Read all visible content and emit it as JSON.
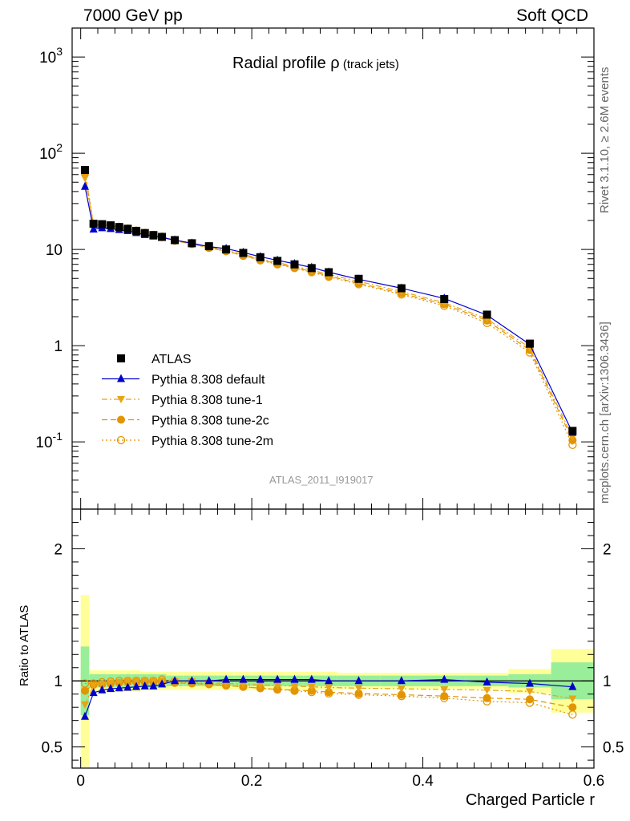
{
  "header": {
    "left": "7000 GeV pp",
    "right": "Soft QCD"
  },
  "side_text": {
    "rivet": "Rivet 3.1.10, ≥ 2.6M events",
    "source": "mcplots.cern.ch [arXiv:1306.3436]"
  },
  "analysis_id": "ATLAS_2011_I919017",
  "chart_data": [
    {
      "type": "scatter",
      "title": "Radial profile ρ (track jets)",
      "title_main": "Radial profile",
      "title_symbol": "ρ",
      "title_suffix": "(track jets)",
      "yscale": "log",
      "ylim": [
        0.02,
        2000
      ],
      "xlim": [
        -0.01,
        0.6
      ],
      "y_ticklabels": [
        "10^-1",
        "1",
        "10",
        "10^2",
        "10^3"
      ],
      "grid": false,
      "legend_position": "bottom-left",
      "x": [
        0.005,
        0.015,
        0.025,
        0.035,
        0.045,
        0.055,
        0.065,
        0.075,
        0.085,
        0.095,
        0.11,
        0.13,
        0.15,
        0.17,
        0.19,
        0.21,
        0.23,
        0.25,
        0.27,
        0.29,
        0.325,
        0.375,
        0.425,
        0.475,
        0.525,
        0.575
      ],
      "series": [
        {
          "name": "ATLAS",
          "color": "#000000",
          "marker": "square",
          "line": "none",
          "values": [
            67,
            18.5,
            18.3,
            17.8,
            17.1,
            16.4,
            15.6,
            14.8,
            14.1,
            13.5,
            12.5,
            11.6,
            10.8,
            10.0,
            9.2,
            8.3,
            7.6,
            7.0,
            6.4,
            5.8,
            4.95,
            3.95,
            3.05,
            2.1,
            1.05,
            0.13
          ]
        },
        {
          "name": "Pythia 8.308 default",
          "color": "#0000cc",
          "marker": "triangle-up",
          "line": "solid",
          "values": [
            45,
            16.2,
            16.7,
            16.4,
            16.0,
            15.6,
            14.9,
            14.2,
            13.7,
            13.3,
            12.5,
            11.6,
            10.7,
            10.2,
            9.3,
            8.4,
            7.7,
            7.1,
            6.5,
            5.8,
            4.9,
            3.95,
            3.1,
            2.08,
            1.03,
            0.125
          ]
        },
        {
          "name": "Pythia 8.308 tune-1",
          "color": "#e8a317",
          "marker": "triangle-down",
          "line": "dashdot",
          "values": [
            55,
            17.9,
            18.0,
            17.6,
            17.0,
            16.4,
            15.6,
            14.8,
            14.1,
            13.5,
            12.5,
            11.6,
            10.6,
            9.8,
            8.9,
            8.0,
            7.3,
            6.7,
            6.1,
            5.5,
            4.65,
            3.65,
            2.8,
            1.9,
            0.95,
            0.112
          ]
        },
        {
          "name": "Pythia 8.308 tune-2c",
          "color": "#e39500",
          "marker": "circle",
          "line": "dashed",
          "values": [
            62,
            18.0,
            18.1,
            17.7,
            17.0,
            16.4,
            15.6,
            14.8,
            14.0,
            13.4,
            12.3,
            11.4,
            10.4,
            9.6,
            8.7,
            7.8,
            7.1,
            6.5,
            5.9,
            5.3,
            4.45,
            3.5,
            2.7,
            1.82,
            0.9,
            0.104
          ]
        },
        {
          "name": "Pythia 8.308 tune-2m",
          "color": "#e39500",
          "marker": "circle-open",
          "line": "dotted",
          "values": [
            66,
            18.1,
            18.2,
            17.8,
            17.2,
            16.5,
            15.7,
            14.9,
            14.2,
            13.6,
            12.4,
            11.4,
            10.4,
            9.6,
            8.6,
            7.7,
            7.0,
            6.4,
            5.8,
            5.2,
            4.35,
            3.4,
            2.6,
            1.72,
            0.85,
            0.093
          ]
        }
      ]
    },
    {
      "type": "scatter",
      "ylabel": "Ratio to ATLAS",
      "xlabel": "Charged Particle r",
      "ylim": [
        0.34,
        2.3
      ],
      "xlim": [
        -0.01,
        0.6
      ],
      "y_ticklabels": [
        "0.5",
        "1",
        "2"
      ],
      "x_ticklabels": [
        "0",
        "0.2",
        "0.4",
        "0.6"
      ],
      "reference_line": 1,
      "band_colors": {
        "inner": "#99ee99",
        "outer": "#ffff99"
      },
      "bins": [
        [
          0,
          0.01
        ],
        [
          0.01,
          0.02
        ],
        [
          0.02,
          0.03
        ],
        [
          0.03,
          0.04
        ],
        [
          0.04,
          0.05
        ],
        [
          0.05,
          0.06
        ],
        [
          0.06,
          0.07
        ],
        [
          0.07,
          0.08
        ],
        [
          0.08,
          0.09
        ],
        [
          0.09,
          0.1
        ],
        [
          0.1,
          0.12
        ],
        [
          0.12,
          0.14
        ],
        [
          0.14,
          0.16
        ],
        [
          0.16,
          0.18
        ],
        [
          0.18,
          0.2
        ],
        [
          0.2,
          0.22
        ],
        [
          0.22,
          0.24
        ],
        [
          0.24,
          0.26
        ],
        [
          0.26,
          0.28
        ],
        [
          0.28,
          0.3
        ],
        [
          0.3,
          0.35
        ],
        [
          0.35,
          0.4
        ],
        [
          0.4,
          0.45
        ],
        [
          0.45,
          0.5
        ],
        [
          0.5,
          0.55
        ],
        [
          0.55,
          0.6
        ]
      ],
      "band_inner": [
        0.26,
        0.05,
        0.05,
        0.05,
        0.05,
        0.05,
        0.05,
        0.05,
        0.05,
        0.05,
        0.04,
        0.04,
        0.04,
        0.04,
        0.04,
        0.04,
        0.04,
        0.04,
        0.04,
        0.04,
        0.04,
        0.04,
        0.04,
        0.04,
        0.05,
        0.14
      ],
      "band_outer": [
        0.65,
        0.08,
        0.08,
        0.08,
        0.08,
        0.08,
        0.08,
        0.07,
        0.07,
        0.07,
        0.07,
        0.07,
        0.07,
        0.07,
        0.07,
        0.07,
        0.07,
        0.07,
        0.07,
        0.07,
        0.06,
        0.06,
        0.06,
        0.06,
        0.09,
        0.24
      ],
      "x": [
        0.005,
        0.015,
        0.025,
        0.035,
        0.045,
        0.055,
        0.065,
        0.075,
        0.085,
        0.095,
        0.11,
        0.13,
        0.15,
        0.17,
        0.19,
        0.21,
        0.23,
        0.25,
        0.27,
        0.29,
        0.325,
        0.375,
        0.425,
        0.475,
        0.525,
        0.575
      ],
      "series": [
        {
          "name": "Pythia 8.308 default",
          "color": "#0000cc",
          "marker": "triangle-up",
          "line": "solid",
          "values": [
            0.73,
            0.91,
            0.93,
            0.94,
            0.945,
            0.95,
            0.955,
            0.96,
            0.96,
            0.975,
            1.0,
            1.0,
            1.0,
            1.01,
            1.01,
            1.01,
            1.01,
            1.01,
            1.01,
            1.0,
            1.0,
            1.0,
            1.01,
            0.99,
            0.98,
            0.955
          ]
        },
        {
          "name": "Pythia 8.308 tune-1",
          "color": "#e8a317",
          "marker": "triangle-down",
          "line": "dashdot",
          "values": [
            0.82,
            0.965,
            0.975,
            0.985,
            0.99,
            0.995,
            1.0,
            1.0,
            1.0,
            1.0,
            0.995,
            0.995,
            0.985,
            0.98,
            0.975,
            0.97,
            0.965,
            0.96,
            0.955,
            0.95,
            0.945,
            0.94,
            0.935,
            0.93,
            0.92,
            0.865
          ]
        },
        {
          "name": "Pythia 8.308 tune-2c",
          "color": "#e39500",
          "marker": "circle",
          "line": "dashed",
          "values": [
            0.925,
            0.97,
            0.975,
            0.98,
            0.985,
            0.99,
            0.99,
            0.99,
            0.99,
            0.99,
            0.985,
            0.98,
            0.975,
            0.965,
            0.955,
            0.945,
            0.935,
            0.93,
            0.925,
            0.915,
            0.905,
            0.895,
            0.885,
            0.87,
            0.86,
            0.8
          ]
        },
        {
          "name": "Pythia 8.308 tune-2m",
          "color": "#e39500",
          "marker": "circle-open",
          "line": "dotted",
          "values": [
            0.98,
            0.98,
            0.99,
            0.995,
            1.0,
            1.0,
            1.0,
            1.0,
            1.0,
            1.01,
            0.995,
            0.985,
            0.975,
            0.965,
            0.955,
            0.945,
            0.935,
            0.925,
            0.915,
            0.905,
            0.895,
            0.885,
            0.87,
            0.845,
            0.835,
            0.745
          ]
        }
      ]
    }
  ]
}
